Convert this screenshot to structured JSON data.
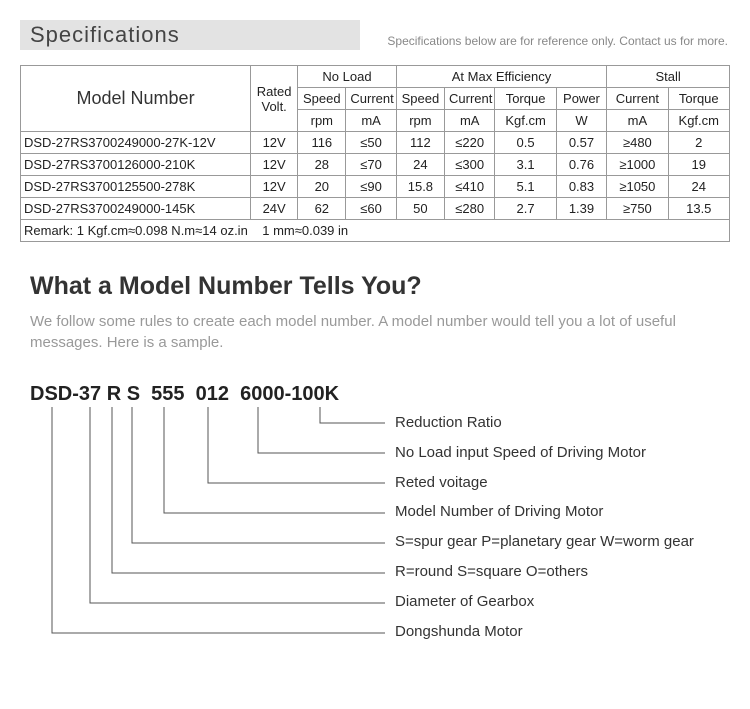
{
  "header": {
    "title": "Specifications",
    "subtitle": "Specifications below are for reference only. Contact us for more."
  },
  "table": {
    "groupHeaders": {
      "model": "Model Number",
      "rated": "Rated Volt.",
      "noLoad": "No Load",
      "maxEff": "At Max Efficiency",
      "stall": "Stall"
    },
    "subHeaders": {
      "nlSpeed": "Speed",
      "nlCurrent": "Current",
      "meSpeed": "Speed",
      "meCurrent": "Current",
      "meTorque": "Torque",
      "mePower": "Power",
      "stCurrent": "Current",
      "stTorque": "Torque"
    },
    "units": {
      "nlSpeed": "rpm",
      "nlCurrent": "mA",
      "meSpeed": "rpm",
      "meCurrent": "mA",
      "meTorque": "Kgf.cm",
      "mePower": "W",
      "stCurrent": "mA",
      "stTorque": "Kgf.cm"
    },
    "rows": [
      {
        "model": "DSD-27RS3700249000-27K-12V",
        "volt": "12V",
        "nlS": "116",
        "nlC": "≤50",
        "meS": "112",
        "meC": "≤220",
        "meT": "0.5",
        "meP": "0.57",
        "stC": "≥480",
        "stT": "2"
      },
      {
        "model": "DSD-27RS3700126000-210K",
        "volt": "12V",
        "nlS": "28",
        "nlC": "≤70",
        "meS": "24",
        "meC": "≤300",
        "meT": "3.1",
        "meP": "0.76",
        "stC": "≥1000",
        "stT": "19"
      },
      {
        "model": "DSD-27RS3700125500-278K",
        "volt": "12V",
        "nlS": "20",
        "nlC": "≤90",
        "meS": "15.8",
        "meC": "≤410",
        "meT": "5.1",
        "meP": "0.83",
        "stC": "≥1050",
        "stT": "24"
      },
      {
        "model": "DSD-27RS3700249000-145K",
        "volt": "24V",
        "nlS": "62",
        "nlC": "≤60",
        "meS": "50",
        "meC": "≤280",
        "meT": "2.7",
        "meP": "1.39",
        "stC": "≥750",
        "stT": "13.5"
      }
    ],
    "remark": "Remark: 1 Kgf.cm≈0.098 N.m≈14 oz.in    1 mm≈0.039 in"
  },
  "section2": {
    "title": "What a Model Number Tells You?",
    "desc": "We follow some rules to create each model number. A model number would tell you a lot of useful messages. Here is a sample.",
    "parts": [
      "DSD-",
      "37 ",
      "R ",
      "S  ",
      "555  ",
      "012  ",
      "6000-",
      "100K"
    ],
    "labels": [
      "Reduction Ratio",
      "No Load input Speed of Driving Motor",
      "Reted voitage",
      "Model Number of Driving Motor",
      "S=spur gear  P=planetary gear  W=worm gear",
      "R=round  S=square  O=others",
      "Diameter of Gearbox",
      "Dongshunda Motor"
    ]
  }
}
